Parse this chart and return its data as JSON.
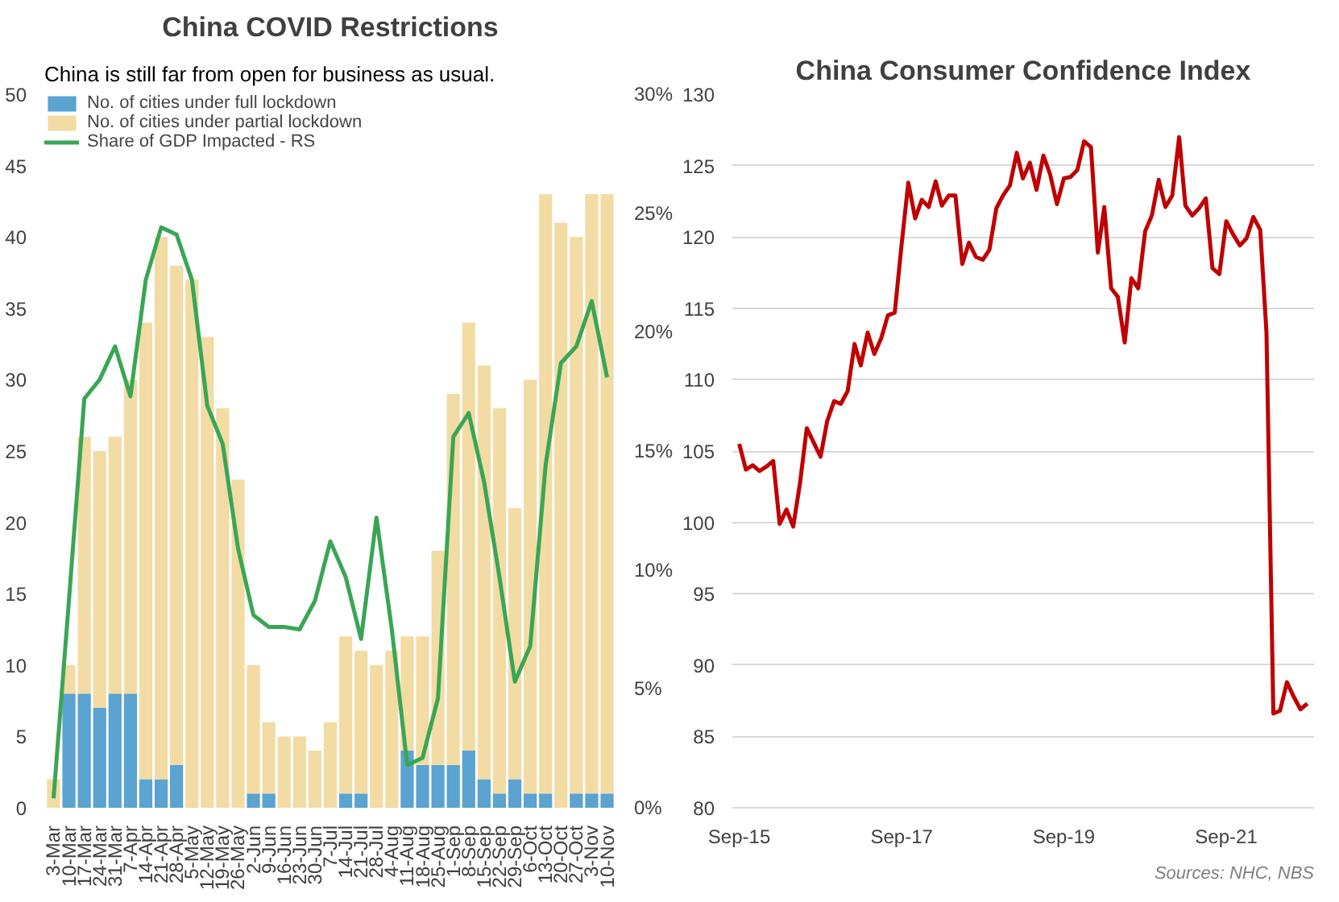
{
  "chart_data": [
    {
      "type": "bar",
      "title": "China COVID Restrictions",
      "annotations": [
        "China is still far from open for business as usual."
      ],
      "categories": [
        "3-Mar",
        "10-Mar",
        "17-Mar",
        "24-Mar",
        "31-Mar",
        "7-Apr",
        "14-Apr",
        "21-Apr",
        "28-Apr",
        "5-May",
        "12-May",
        "19-May",
        "26-May",
        "2-Jun",
        "9-Jun",
        "16-Jun",
        "23-Jun",
        "30-Jun",
        "7-Jul",
        "14-Jul",
        "21-Jul",
        "28-Jul",
        "4-Aug",
        "11-Aug",
        "18-Aug",
        "25-Aug",
        "1-Sep",
        "8-Sep",
        "15-Sep",
        "22-Sep",
        "29-Sep",
        "6-Oct",
        "13-Oct",
        "20-Oct",
        "27-Oct",
        "3-Nov",
        "10-Nov"
      ],
      "stacked": true,
      "ylim": [
        0,
        50
      ],
      "yticks": [
        0,
        5,
        10,
        15,
        20,
        25,
        30,
        35,
        40,
        45,
        50
      ],
      "y2lim": [
        0,
        30
      ],
      "y2ticks": [
        {
          "value": 0,
          "label": "0%"
        },
        {
          "value": 5,
          "label": "5%"
        },
        {
          "value": 10,
          "label": "10%"
        },
        {
          "value": 15,
          "label": "15%"
        },
        {
          "value": 20,
          "label": "20%"
        },
        {
          "value": 25,
          "label": "25%"
        },
        {
          "value": 30,
          "label": "30%"
        }
      ],
      "grid": false,
      "legend": "top left",
      "series": [
        {
          "name": "No. of cities under full lockdown",
          "color": "#5ba3d0",
          "values": [
            0,
            8,
            8,
            7,
            8,
            8,
            2,
            2,
            3,
            0,
            0,
            0,
            0,
            1,
            1,
            0,
            0,
            0,
            0,
            1,
            1,
            0,
            0,
            4,
            3,
            3,
            3,
            4,
            2,
            1,
            2,
            1,
            1,
            0,
            1,
            1,
            1
          ]
        },
        {
          "name": "No. of cities under partial lockdown",
          "color": "#f2dca4",
          "values": [
            2,
            2,
            18,
            18,
            18,
            22,
            32,
            38,
            35,
            37,
            33,
            28,
            23,
            9,
            5,
            5,
            5,
            4,
            6,
            11,
            10,
            10,
            11,
            8,
            9,
            15,
            26,
            30,
            29,
            27,
            19,
            29,
            42,
            41,
            39,
            42,
            42
          ]
        },
        {
          "name": "Share of GDP Impacted - RS",
          "type": "line",
          "axis": "y2",
          "color": "#3aa655",
          "values": [
            0.4,
            8.7,
            17.2,
            18,
            19.4,
            17.3,
            22.2,
            24.4,
            24.1,
            22.2,
            16.9,
            15.3,
            10.9,
            8.1,
            7.6,
            7.6,
            7.5,
            8.7,
            11.2,
            9.7,
            7.1,
            12.2,
            7.5,
            1.8,
            2.1,
            4.6,
            15.6,
            16.6,
            13.7,
            9.7,
            5.3,
            6.8,
            14.4,
            18.7,
            19.4,
            21.3,
            18.1
          ]
        }
      ]
    },
    {
      "type": "line",
      "title": "China Consumer Confidence Index",
      "annotations": [
        "Sources: NHC, NBS"
      ],
      "grid": "y",
      "xlim": [
        "2015-08",
        "2022-10"
      ],
      "xticks": [
        {
          "value": "2015-09",
          "label": "Sep-15"
        },
        {
          "value": "2017-09",
          "label": "Sep-17"
        },
        {
          "value": "2019-09",
          "label": "Sep-19"
        },
        {
          "value": "2021-09",
          "label": "Sep-21"
        }
      ],
      "ylim": [
        80,
        130
      ],
      "yticks": [
        80,
        85,
        90,
        95,
        100,
        105,
        110,
        115,
        120,
        125,
        130
      ],
      "x": [
        "2015-09",
        "2015-10",
        "2015-11",
        "2015-12",
        "2016-01",
        "2016-02",
        "2016-03",
        "2016-04",
        "2016-05",
        "2016-06",
        "2016-07",
        "2016-08",
        "2016-09",
        "2016-10",
        "2016-11",
        "2016-12",
        "2017-01",
        "2017-02",
        "2017-03",
        "2017-04",
        "2017-05",
        "2017-06",
        "2017-07",
        "2017-08",
        "2017-09",
        "2017-10",
        "2017-11",
        "2017-12",
        "2018-01",
        "2018-02",
        "2018-03",
        "2018-04",
        "2018-05",
        "2018-06",
        "2018-07",
        "2018-08",
        "2018-09",
        "2018-10",
        "2018-11",
        "2018-12",
        "2019-01",
        "2019-02",
        "2019-03",
        "2019-04",
        "2019-05",
        "2019-06",
        "2019-07",
        "2019-08",
        "2019-09",
        "2019-10",
        "2019-11",
        "2019-12",
        "2020-01",
        "2020-02",
        "2020-03",
        "2020-04",
        "2020-05",
        "2020-06",
        "2020-07",
        "2020-08",
        "2020-09",
        "2020-10",
        "2020-11",
        "2020-12",
        "2021-01",
        "2021-02",
        "2021-03",
        "2021-04",
        "2021-05",
        "2021-06",
        "2021-07",
        "2021-08",
        "2021-09",
        "2021-10",
        "2021-11",
        "2021-12",
        "2022-01",
        "2022-02",
        "2022-03",
        "2022-04",
        "2022-05",
        "2022-06",
        "2022-07",
        "2022-08",
        "2022-09"
      ],
      "series": [
        {
          "color": "#c00000",
          "values": [
            105.5,
            103.7,
            104.0,
            103.6,
            103.9,
            104.3,
            99.9,
            100.9,
            99.7,
            102.8,
            106.6,
            105.6,
            104.6,
            107.1,
            108.5,
            108.3,
            109.2,
            112.5,
            111.0,
            113.3,
            111.8,
            112.9,
            114.5,
            114.7,
            119.5,
            123.8,
            121.3,
            122.6,
            122.1,
            123.9,
            122.2,
            122.9,
            122.9,
            118.1,
            119.6,
            118.6,
            118.4,
            119.1,
            122.0,
            122.9,
            123.6,
            125.9,
            124.1,
            125.2,
            123.3,
            125.7,
            124.4,
            122.3,
            124.1,
            124.2,
            124.7,
            126.7,
            126.3,
            118.9,
            122.1,
            116.4,
            115.8,
            112.6,
            117.1,
            116.4,
            120.4,
            121.5,
            124.0,
            122.1,
            122.9,
            127.0,
            122.2,
            121.5,
            122.0,
            122.7,
            117.8,
            117.4,
            121.1,
            120.2,
            119.4,
            119.9,
            121.4,
            120.5,
            113.3,
            86.6,
            86.8,
            88.8,
            87.8,
            86.9,
            87.3
          ]
        }
      ]
    }
  ]
}
